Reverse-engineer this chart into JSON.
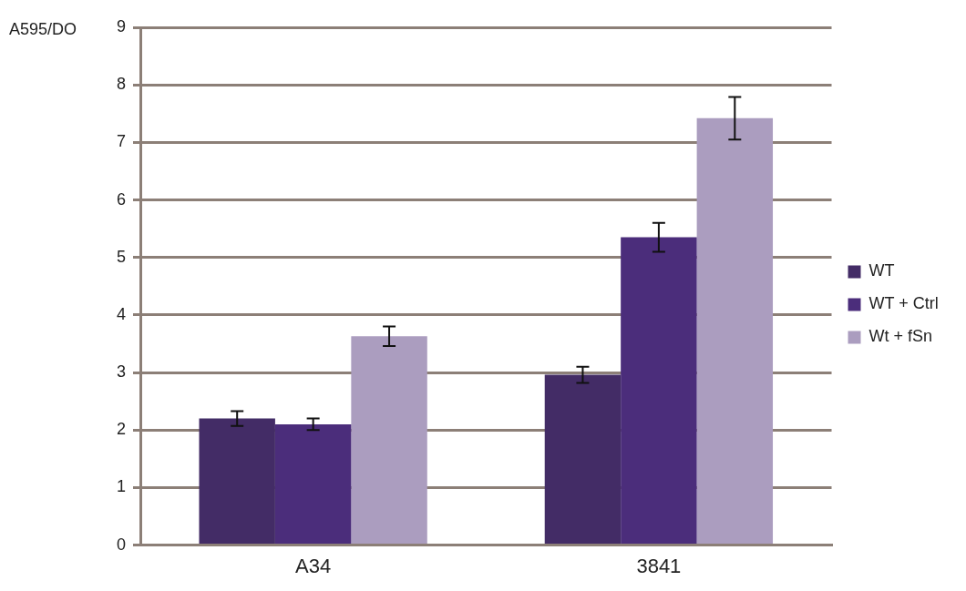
{
  "chart_data": {
    "type": "bar",
    "ylabel": "A595/DO",
    "categories": [
      "A34",
      "3841"
    ],
    "series": [
      {
        "name": "WT",
        "color": "#432c66",
        "values": [
          2.2,
          2.96
        ],
        "errors": [
          0.13,
          0.14
        ]
      },
      {
        "name": "WT + Ctrl",
        "color": "#4b2d7b",
        "values": [
          2.1,
          5.35
        ],
        "errors": [
          0.1,
          0.25
        ]
      },
      {
        "name": "Wt + fSn",
        "color": "#ab9dbf",
        "values": [
          3.63,
          7.42
        ],
        "errors": [
          0.17,
          0.37
        ]
      }
    ],
    "ylim": [
      0,
      9
    ],
    "yticks": [
      0,
      1,
      2,
      3,
      4,
      5,
      6,
      7,
      8,
      9
    ],
    "grid": "y",
    "legend": "right"
  }
}
